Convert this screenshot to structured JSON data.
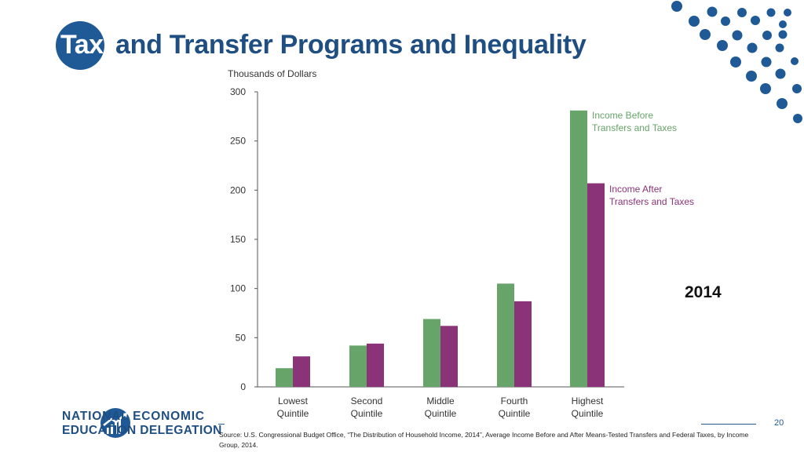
{
  "slide": {
    "title_highlight": "Tax",
    "title_rest": "and Transfer Programs and Inequality",
    "year": "2014",
    "org_line1": "NATIONAL ECONOMIC",
    "org_line2": "EDUCATION DELEGATION",
    "page_number": "20",
    "source": "Source: U.S. Congressional Budget Office, “The Distribution of Household Income, 2014”,  Average Income Before and After Means-Tested Transfers and Federal Taxes, by Income Group, 2014.",
    "colors": {
      "accent": "#1f5a96",
      "title": "#1f4e82"
    }
  },
  "chart_data": {
    "type": "bar",
    "ylabel": "Thousands of Dollars",
    "ylim": [
      0,
      300
    ],
    "yticks": [
      0,
      50,
      100,
      150,
      200,
      250,
      300
    ],
    "categories": [
      [
        "Lowest",
        "Quintile"
      ],
      [
        "Second",
        "Quintile"
      ],
      [
        "Middle",
        "Quintile"
      ],
      [
        "Fourth",
        "Quintile"
      ],
      [
        "Highest",
        "Quintile"
      ]
    ],
    "series": [
      {
        "name": [
          "Income Before",
          "Transfers and Taxes"
        ],
        "color": "#67a469",
        "values": [
          19,
          42,
          69,
          105,
          281
        ]
      },
      {
        "name": [
          "Income After",
          "Transfers and Taxes"
        ],
        "color": "#8b3378",
        "values": [
          31,
          44,
          62,
          87,
          207
        ]
      }
    ],
    "grid": false,
    "legend": "inline-labels"
  }
}
